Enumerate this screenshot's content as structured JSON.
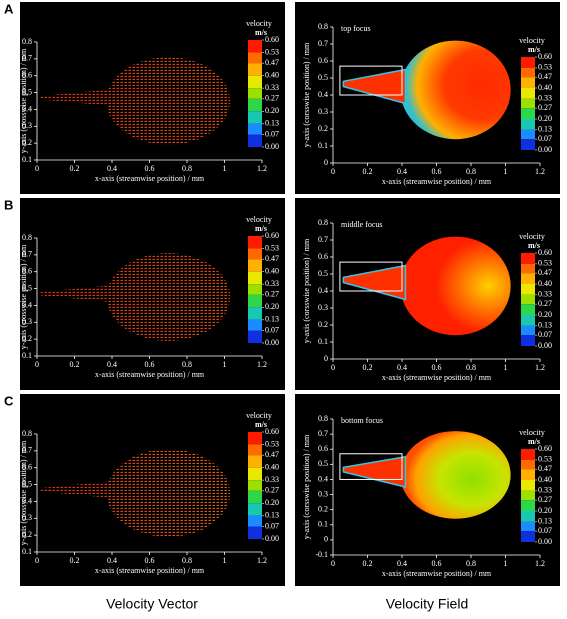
{
  "chart_data": [
    {
      "type": "vector",
      "panel": "A",
      "xlabel": "x-axis (streamwise position) / mm",
      "ylabel": "y-axis (crosswise position) / mm",
      "xlim": [
        0,
        1.2
      ],
      "xticks": [
        0,
        0.2,
        0.4,
        0.6,
        0.8,
        1,
        1.2
      ],
      "ylim": [
        0.1,
        0.8
      ],
      "yticks": [
        0.1,
        0.2,
        0.3,
        0.4,
        0.5,
        0.6,
        0.7,
        0.8
      ],
      "colorbar": {
        "title": "velocity",
        "unit": "m/s",
        "clim": [
          0,
          0.6
        ],
        "ticks": [
          {
            "value": 0.6,
            "label": "0.60"
          },
          {
            "value": 0.53,
            "label": "0.53"
          },
          {
            "value": 0.47,
            "label": "0.47"
          },
          {
            "value": 0.4,
            "label": "0.40"
          },
          {
            "value": 0.33,
            "label": "0.33"
          },
          {
            "value": 0.27,
            "label": "0.27"
          },
          {
            "value": 0.2,
            "label": "0.20"
          },
          {
            "value": 0.13,
            "label": "0.13"
          },
          {
            "value": 0.07,
            "label": "0.07"
          },
          {
            "value": 0,
            "label": "0.00"
          }
        ],
        "colors": [
          "#ff1a00",
          "#ff6a00",
          "#ffb000",
          "#e8e800",
          "#9be000",
          "#2fd64a",
          "#18c8b4",
          "#1a8cff",
          "#1030e0"
        ]
      }
    },
    {
      "type": "field",
      "title": "top focus",
      "xlabel": "x-axis (streamwise position) / mm",
      "ylabel": "y-axis (corsswise position) / mm",
      "xlim": [
        0,
        1.2
      ],
      "xticks": [
        0,
        0.2,
        0.4,
        0.6,
        0.8,
        1,
        1.2
      ],
      "ylim": [
        0,
        0.8
      ],
      "yticks": [
        0,
        0.1,
        0.2,
        0.3,
        0.4,
        0.5,
        0.6,
        0.7,
        0.8
      ],
      "colorbar": {
        "title": "velocity",
        "unit": "m/s",
        "clim": [
          0,
          0.6
        ],
        "ticks": [
          {
            "value": 0.6,
            "label": "0.60"
          },
          {
            "value": 0.53,
            "label": "0.53"
          },
          {
            "value": 0.47,
            "label": "0.47"
          },
          {
            "value": 0.4,
            "label": "0.40"
          },
          {
            "value": 0.33,
            "label": "0.33"
          },
          {
            "value": 0.27,
            "label": "0.27"
          },
          {
            "value": 0.2,
            "label": "0.20"
          },
          {
            "value": 0.13,
            "label": "0.13"
          },
          {
            "value": 0.07,
            "label": "0.07"
          },
          {
            "value": 0,
            "label": "0.00"
          }
        ],
        "colors": [
          "#ff1a00",
          "#ff6a00",
          "#ffb000",
          "#e8e800",
          "#9be000",
          "#2fd64a",
          "#18c8b4",
          "#1a8cff",
          "#1030e0"
        ]
      }
    },
    {
      "type": "vector",
      "panel": "B",
      "xlabel": "x-axis (streamwise position) / mm",
      "ylabel": "y-axis (crosswise position) / mm",
      "xlim": [
        0,
        1.2
      ],
      "xticks": [
        0,
        0.2,
        0.4,
        0.6,
        0.8,
        1,
        1.2
      ],
      "ylim": [
        0.1,
        0.8
      ],
      "yticks": [
        0.1,
        0.2,
        0.3,
        0.4,
        0.5,
        0.6,
        0.7,
        0.8
      ],
      "colorbar": {
        "title": "velocity",
        "unit": "m/s",
        "clim": [
          0,
          0.6
        ],
        "ticks": [
          {
            "value": 0.6,
            "label": "0.60"
          },
          {
            "value": 0.53,
            "label": "0.53"
          },
          {
            "value": 0.47,
            "label": "0.47"
          },
          {
            "value": 0.4,
            "label": "0.40"
          },
          {
            "value": 0.33,
            "label": "0.33"
          },
          {
            "value": 0.27,
            "label": "0.27"
          },
          {
            "value": 0.2,
            "label": "0.20"
          },
          {
            "value": 0.13,
            "label": "0.13"
          },
          {
            "value": 0.07,
            "label": "0.07"
          },
          {
            "value": 0,
            "label": "0.00"
          }
        ],
        "colors": [
          "#ff1a00",
          "#ff6a00",
          "#ffb000",
          "#e8e800",
          "#9be000",
          "#2fd64a",
          "#18c8b4",
          "#1a8cff",
          "#1030e0"
        ]
      }
    },
    {
      "type": "field",
      "title": "middle focus",
      "xlabel": "x-axis (streamwise position) / mm",
      "ylabel": "y-axis (corsswise position) / mm",
      "xlim": [
        0,
        1.2
      ],
      "xticks": [
        0,
        0.2,
        0.4,
        0.6,
        0.8,
        1,
        1.2
      ],
      "ylim": [
        0,
        0.8
      ],
      "yticks": [
        0,
        0.1,
        0.2,
        0.3,
        0.4,
        0.5,
        0.6,
        0.7,
        0.8
      ],
      "colorbar": {
        "title": "velocity",
        "unit": "m/s",
        "clim": [
          0,
          0.6
        ],
        "ticks": [
          {
            "value": 0.6,
            "label": "0.60"
          },
          {
            "value": 0.53,
            "label": "0.53"
          },
          {
            "value": 0.47,
            "label": "0.47"
          },
          {
            "value": 0.4,
            "label": "0.40"
          },
          {
            "value": 0.33,
            "label": "0.33"
          },
          {
            "value": 0.27,
            "label": "0.27"
          },
          {
            "value": 0.2,
            "label": "0.20"
          },
          {
            "value": 0.13,
            "label": "0.13"
          },
          {
            "value": 0.07,
            "label": "0.07"
          },
          {
            "value": 0,
            "label": "0.00"
          }
        ],
        "colors": [
          "#ff1a00",
          "#ff6a00",
          "#ffb000",
          "#e8e800",
          "#9be000",
          "#2fd64a",
          "#18c8b4",
          "#1a8cff",
          "#1030e0"
        ]
      }
    },
    {
      "type": "vector",
      "panel": "C",
      "xlabel": "x-axis (streamwise position) / mm",
      "ylabel": "y-axis (crosswise position) / mm",
      "xlim": [
        0,
        1.2
      ],
      "xticks": [
        0,
        0.2,
        0.4,
        0.6,
        0.8,
        1,
        1.2
      ],
      "ylim": [
        0.1,
        0.8
      ],
      "yticks": [
        0.1,
        0.2,
        0.3,
        0.4,
        0.5,
        0.6,
        0.7,
        0.8
      ],
      "colorbar": {
        "title": "velocity",
        "unit": "m/s",
        "clim": [
          0,
          0.6
        ],
        "ticks": [
          {
            "value": 0.6,
            "label": "0.60"
          },
          {
            "value": 0.53,
            "label": "0.53"
          },
          {
            "value": 0.47,
            "label": "0.47"
          },
          {
            "value": 0.4,
            "label": "0.40"
          },
          {
            "value": 0.33,
            "label": "0.33"
          },
          {
            "value": 0.27,
            "label": "0.27"
          },
          {
            "value": 0.2,
            "label": "0.20"
          },
          {
            "value": 0.13,
            "label": "0.13"
          },
          {
            "value": 0.07,
            "label": "0.07"
          },
          {
            "value": 0,
            "label": "0.00"
          }
        ],
        "colors": [
          "#ff1a00",
          "#ff6a00",
          "#ffb000",
          "#e8e800",
          "#9be000",
          "#2fd64a",
          "#18c8b4",
          "#1a8cff",
          "#1030e0"
        ]
      }
    },
    {
      "type": "field",
      "title": "bottom focus",
      "xlabel": "x-axis (streamwise position) / mm",
      "ylabel": "y-axis (corsswise position) / mm",
      "xlim": [
        0,
        1.2
      ],
      "xticks": [
        0,
        0.2,
        0.4,
        0.6,
        0.8,
        1,
        1.2
      ],
      "ylim": [
        -0.1,
        0.8
      ],
      "yticks": [
        -0.1,
        0,
        0.1,
        0.2,
        0.3,
        0.4,
        0.5,
        0.6,
        0.7,
        0.8
      ],
      "colorbar": {
        "title": "velocity",
        "unit": "m/s",
        "clim": [
          0,
          0.6
        ],
        "ticks": [
          {
            "value": 0.6,
            "label": "0.60"
          },
          {
            "value": 0.53,
            "label": "0.53"
          },
          {
            "value": 0.47,
            "label": "0.47"
          },
          {
            "value": 0.4,
            "label": "0.40"
          },
          {
            "value": 0.33,
            "label": "0.33"
          },
          {
            "value": 0.27,
            "label": "0.27"
          },
          {
            "value": 0.2,
            "label": "0.20"
          },
          {
            "value": 0.13,
            "label": "0.13"
          },
          {
            "value": 0.07,
            "label": "0.07"
          },
          {
            "value": 0,
            "label": "0.00"
          }
        ],
        "colors": [
          "#ff1a00",
          "#ff6a00",
          "#ffb000",
          "#e8e800",
          "#9be000",
          "#2fd64a",
          "#18c8b4",
          "#1a8cff",
          "#1030e0"
        ]
      }
    }
  ],
  "column_labels": [
    "Velocity Vector",
    "Velocity Field"
  ]
}
